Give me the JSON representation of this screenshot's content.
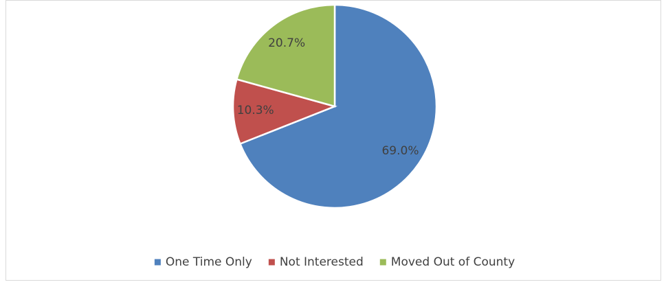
{
  "chart_data": {
    "type": "pie",
    "categories": [
      "One Time Only",
      "Not Interested",
      "Moved Out of County"
    ],
    "values": [
      69.0,
      10.3,
      20.7
    ],
    "value_labels": [
      "69.0%",
      "10.3%",
      "20.7%"
    ],
    "colors": [
      "#4f81bd",
      "#c0504d",
      "#9bbb59"
    ],
    "legend": "bottom"
  }
}
